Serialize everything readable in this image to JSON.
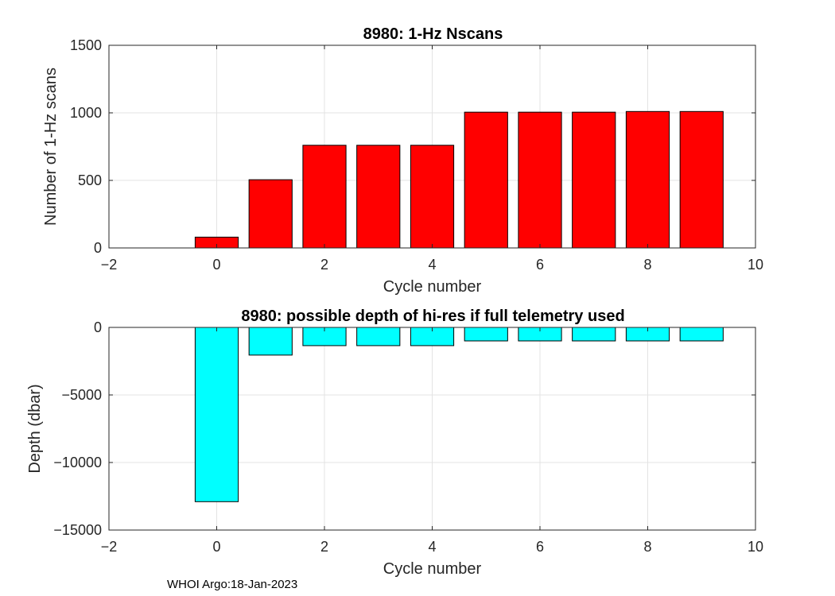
{
  "footer": "WHOI Argo:18-Jan-2023",
  "chart_data": [
    {
      "type": "bar",
      "title": "8980: 1-Hz Nscans",
      "xlabel": "Cycle number",
      "ylabel": "Number of 1-Hz scans",
      "xlim": [
        -2,
        10
      ],
      "ylim": [
        0,
        1500
      ],
      "xticks": [
        -2,
        0,
        2,
        4,
        6,
        8,
        10
      ],
      "yticks": [
        0,
        500,
        1000,
        1500
      ],
      "grid": true,
      "bar_color": "#ff0000",
      "x": [
        0,
        1,
        2,
        3,
        4,
        5,
        6,
        7,
        8,
        9
      ],
      "values": [
        80,
        505,
        760,
        760,
        760,
        1005,
        1005,
        1005,
        1010,
        1010
      ]
    },
    {
      "type": "bar",
      "title": "8980: possible depth of hi-res if full telemetry used",
      "xlabel": "Cycle number",
      "ylabel": "Depth (dbar)",
      "xlim": [
        -2,
        10
      ],
      "ylim": [
        -15000,
        0
      ],
      "xticks": [
        -2,
        0,
        2,
        4,
        6,
        8,
        10
      ],
      "yticks": [
        -15000,
        -10000,
        -5000,
        0
      ],
      "grid": true,
      "bar_color": "#00ffff",
      "x": [
        0,
        1,
        2,
        3,
        4,
        5,
        6,
        7,
        8,
        9
      ],
      "values": [
        -12900,
        -2050,
        -1350,
        -1350,
        -1350,
        -1000,
        -1000,
        -1000,
        -1000,
        -1000
      ]
    }
  ]
}
